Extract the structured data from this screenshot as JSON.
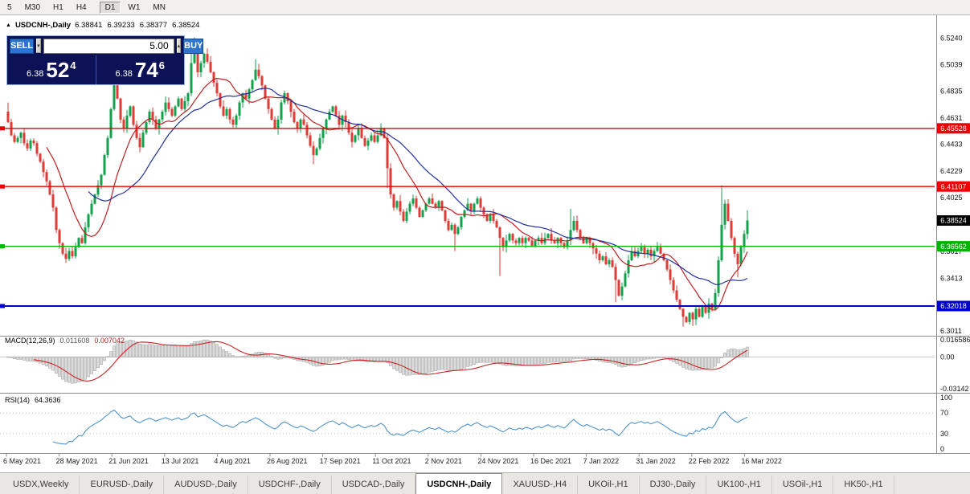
{
  "toolbar": {
    "timeframes": [
      "5",
      "M30",
      "H1",
      "H4",
      "D1",
      "W1",
      "MN"
    ],
    "active": "D1"
  },
  "chart": {
    "collapse_icon": "▲",
    "symbol_period": "USDCNH-,Daily",
    "trade_panel": {
      "sell_label": "SELL",
      "buy_label": "BUY",
      "volume": "5.00",
      "spin_down": "▾",
      "spin_up": "▴",
      "sell_price": {
        "small": "6.38",
        "big": "52",
        "sup": "4"
      },
      "buy_price": {
        "small": "6.38",
        "big": "74",
        "sup": "6"
      }
    }
  },
  "chart_data": {
    "type": "candlestick",
    "symbol": "USDCNH-",
    "timeframe": "Daily",
    "ohlc_display": {
      "open": "6.38841",
      "high": "6.39233",
      "low": "6.38377",
      "close": "6.38524"
    },
    "bull_color": "#12a04b",
    "bear_color": "#e23a34",
    "price_axis": {
      "top": 6.5285,
      "bottom": 6.3,
      "tick_labels": [
        {
          "t": "6.5240",
          "p": 6.524
        },
        {
          "t": "6.5039",
          "p": 6.5039
        },
        {
          "t": "6.4835",
          "p": 6.4835
        },
        {
          "t": "6.4631",
          "p": 6.4631
        },
        {
          "t": "6.4433",
          "p": 6.4433
        },
        {
          "t": "6.4229",
          "p": 6.4229
        },
        {
          "t": "6.4025",
          "p": 6.4025
        },
        {
          "t": "6.3617",
          "p": 6.3617
        },
        {
          "t": "6.3413",
          "p": 6.3413
        },
        {
          "t": "6.3011",
          "p": 6.3011
        }
      ]
    },
    "x_labels": [
      "6 May 2021",
      "28 May 2021",
      "21 Jun 2021",
      "13 Jul 2021",
      "4 Aug 2021",
      "26 Aug 2021",
      "17 Sep 2021",
      "11 Oct 2021",
      "2 Nov 2021",
      "24 Nov 2021",
      "16 Dec 2021",
      "7 Jan 2022",
      "31 Jan 2022",
      "22 Feb 2022",
      "16 Mar 2022"
    ],
    "first_open": 6.468,
    "closes": [
      6.46,
      6.45,
      6.445,
      6.448,
      6.452,
      6.444,
      6.44,
      6.446,
      6.444,
      6.436,
      6.43,
      6.422,
      6.415,
      6.405,
      6.395,
      6.378,
      6.368,
      6.36,
      6.356,
      6.362,
      6.358,
      6.365,
      6.372,
      6.368,
      6.38,
      6.39,
      6.398,
      6.405,
      6.412,
      6.42,
      6.435,
      6.448,
      6.47,
      6.488,
      6.478,
      6.462,
      6.455,
      6.465,
      6.472,
      6.458,
      6.448,
      6.441,
      6.452,
      6.46,
      6.468,
      6.462,
      6.455,
      6.462,
      6.468,
      6.475,
      6.47,
      6.465,
      6.472,
      6.478,
      6.47,
      6.476,
      6.482,
      6.505,
      6.512,
      6.498,
      6.505,
      6.512,
      6.506,
      6.498,
      6.49,
      6.482,
      6.472,
      6.465,
      6.47,
      6.462,
      6.458,
      6.465,
      6.475,
      6.482,
      6.478,
      6.485,
      6.492,
      6.5,
      6.495,
      6.488,
      6.478,
      6.47,
      6.462,
      6.455,
      6.462,
      6.475,
      6.482,
      6.476,
      6.468,
      6.46,
      6.455,
      6.462,
      6.458,
      6.45,
      6.442,
      6.435,
      6.44,
      6.448,
      6.455,
      6.462,
      6.468,
      6.472,
      6.465,
      6.458,
      6.465,
      6.46,
      6.452,
      6.445,
      6.45,
      6.455,
      6.448,
      6.442,
      6.446,
      6.45,
      6.445,
      6.45,
      6.455,
      6.448,
      6.425,
      6.405,
      6.395,
      6.4,
      6.392,
      6.385,
      6.392,
      6.398,
      6.402,
      6.395,
      6.388,
      6.393,
      6.398,
      6.402,
      6.398,
      6.395,
      6.4,
      6.393,
      6.385,
      6.378,
      6.382,
      6.375,
      6.38,
      6.388,
      6.393,
      6.398,
      6.392,
      6.398,
      6.402,
      6.395,
      6.39,
      6.385,
      6.39,
      6.385,
      6.38,
      6.372,
      6.365,
      6.37,
      6.375,
      6.37,
      6.368,
      6.372,
      6.368,
      6.372,
      6.37,
      6.366,
      6.37,
      6.372,
      6.368,
      6.372,
      6.375,
      6.37,
      6.368,
      6.372,
      6.368,
      6.365,
      6.37,
      6.378,
      6.385,
      6.378,
      6.372,
      6.368,
      6.372,
      6.368,
      6.364,
      6.36,
      6.355,
      6.358,
      6.352,
      6.355,
      6.35,
      6.34,
      6.328,
      6.335,
      6.345,
      6.355,
      6.362,
      6.358,
      6.362,
      6.365,
      6.36,
      6.363,
      6.358,
      6.362,
      6.365,
      6.36,
      6.355,
      6.348,
      6.34,
      6.332,
      6.325,
      6.318,
      6.312,
      6.308,
      6.315,
      6.31,
      6.318,
      6.312,
      6.32,
      6.315,
      6.322,
      6.318,
      6.33,
      6.355,
      6.382,
      6.398,
      6.385,
      6.372,
      6.36,
      6.352,
      6.365,
      6.375,
      6.38524
    ],
    "wick_overrides": {
      "0": {
        "h": 6.475
      },
      "18": {
        "l": 6.353
      },
      "33": {
        "h": 6.493
      },
      "41": {
        "l": 6.437
      },
      "57": {
        "h": 6.519
      },
      "58": {
        "h": 6.5245
      },
      "77": {
        "h": 6.508
      },
      "95": {
        "l": 6.428
      },
      "118": {
        "l": 6.41
      },
      "139": {
        "l": 6.362
      },
      "153": {
        "l": 6.343
      },
      "175": {
        "h": 6.394
      },
      "189": {
        "l": 6.323
      },
      "210": {
        "l": 6.3045
      },
      "213": {
        "l": 6.305
      },
      "222": {
        "h": 6.412
      },
      "227": {
        "l": 6.342
      },
      "230": {
        "h": 6.393
      }
    },
    "lines": [
      {
        "price": 6.45528,
        "label": "6.45528",
        "color": "#ee0000",
        "width": 1.3
      },
      {
        "price": 6.41107,
        "label": "6.41107",
        "color": "#ee0000",
        "width": 1.3
      },
      {
        "price": 6.36562,
        "label": "6.36562",
        "color": "#00b400",
        "width": 1.3
      },
      {
        "price": 6.32018,
        "label": "6.32018",
        "color": "#0000cc",
        "width": 2
      }
    ],
    "current_price": {
      "value": 6.38524,
      "label": "6.38524",
      "color": "#000000"
    },
    "moving_averages": [
      {
        "period": 13,
        "color": "#c01f1f"
      },
      {
        "period": 26,
        "color": "#20309d"
      }
    ],
    "macd": {
      "label": "MACD(12,26,9)",
      "value_main": "0.011608",
      "value_signal": "0.007042",
      "scale": {
        "top": 0.016586,
        "bottom": -0.03142
      },
      "axis_labels": [
        {
          "t": "0.016586",
          "v": 0.016586
        },
        {
          "t": "0.00",
          "v": 0
        },
        {
          "t": "-0.03142",
          "v": -0.03142
        }
      ],
      "histogram_fill": "#dcdcdc",
      "histogram_stroke": "#9a9a9a",
      "signal_color": "#cc2222"
    },
    "rsi": {
      "label": "RSI(14)",
      "value": "64.3636",
      "period": 14,
      "color": "#4f94cd",
      "levels": [
        70,
        30
      ],
      "axis_labels": [
        {
          "t": "100",
          "v": 100
        },
        {
          "t": "70",
          "v": 70
        },
        {
          "t": "30",
          "v": 30
        },
        {
          "t": "0",
          "v": 0
        }
      ]
    }
  },
  "tabs": {
    "items": [
      "USDX,Weekly",
      "EURUSD-,Daily",
      "AUDUSD-,Daily",
      "USDCHF-,Daily",
      "USDCAD-,Daily",
      "USDCNH-,Daily",
      "XAUUSD-,H4",
      "UKOil-,H1",
      "DJ30-,Daily",
      "UK100-,H1",
      "USOil-,H1",
      "HK50-,H1"
    ],
    "active": "USDCNH-,Daily"
  }
}
